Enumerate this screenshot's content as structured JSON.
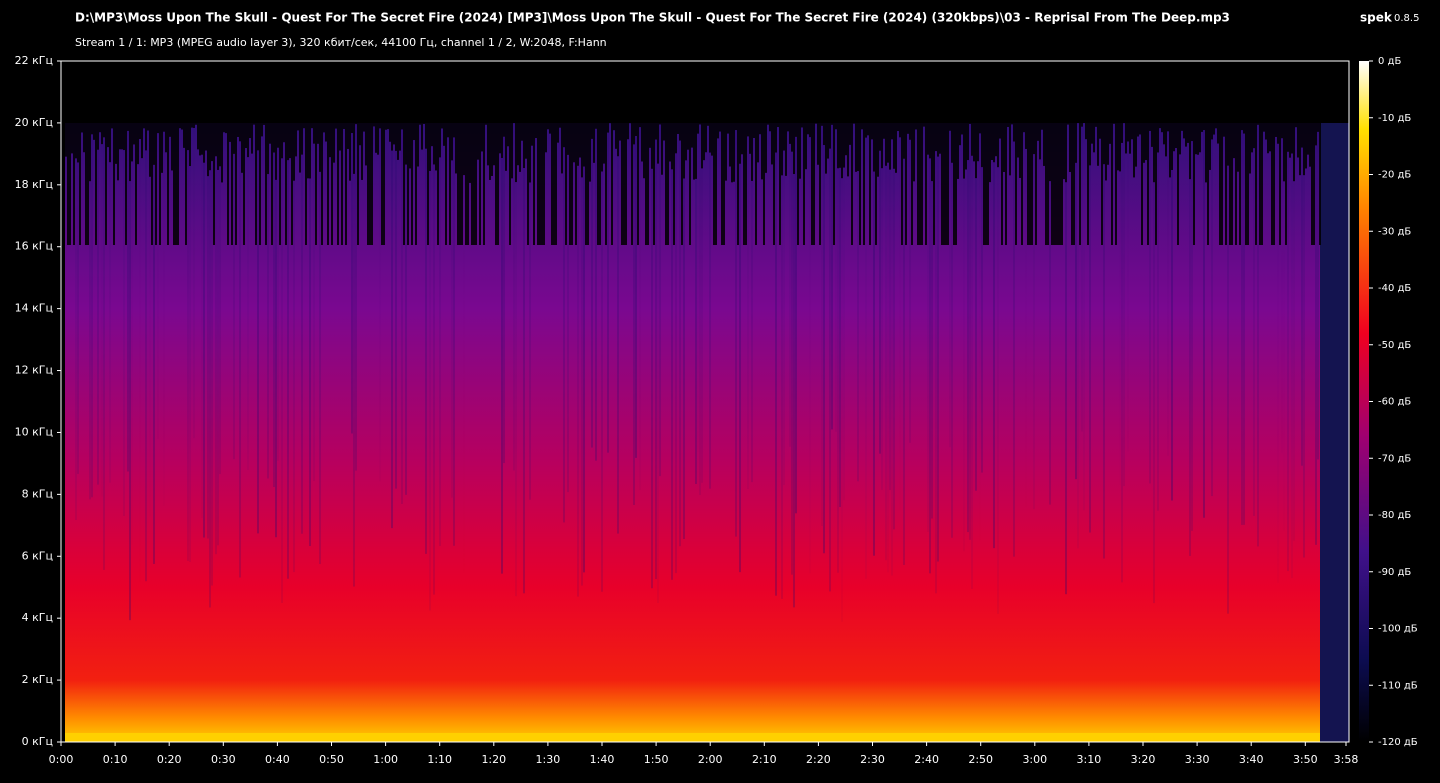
{
  "window": {
    "file_path": "D:\\MP3\\Moss Upon The Skull - Quest For The Secret Fire (2024) [MP3]\\Moss Upon The Skull - Quest For The Secret Fire (2024) (320kbps)\\03 - Reprisal From The Deep.mp3",
    "app_name": "spek",
    "app_version": "0.8.5",
    "stream_info": "Stream 1 / 1: MP3 (MPEG audio layer 3), 320 кбит/сек, 44100 Гц, channel 1 / 2, W:2048, F:Hann"
  },
  "frequency_axis": [
    "22 кГц",
    "20 кГц",
    "18 кГц",
    "16 кГц",
    "14 кГц",
    "12 кГц",
    "10 кГц",
    "8 кГц",
    "6 кГц",
    "4 кГц",
    "2 кГц",
    "0 кГц"
  ],
  "time_axis": [
    "0:00",
    "0:10",
    "0:20",
    "0:30",
    "0:40",
    "0:50",
    "1:00",
    "1:10",
    "1:20",
    "1:30",
    "1:40",
    "1:50",
    "2:00",
    "2:10",
    "2:20",
    "2:30",
    "2:40",
    "2:50",
    "3:00",
    "3:10",
    "3:20",
    "3:30",
    "3:40",
    "3:50",
    "3:58"
  ],
  "level_axis": [
    "0 дБ",
    "-10 дБ",
    "-20 дБ",
    "-30 дБ",
    "-40 дБ",
    "-50 дБ",
    "-60 дБ",
    "-70 дБ",
    "-80 дБ",
    "-90 дБ",
    "-100 дБ",
    "-110 дБ",
    "-120 дБ"
  ]
}
